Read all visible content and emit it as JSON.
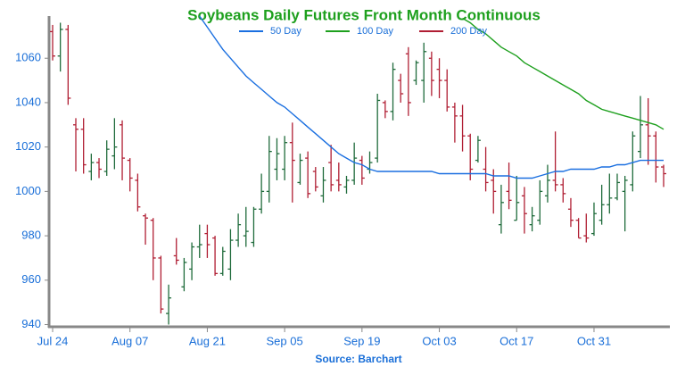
{
  "chart_data": {
    "type": "ohlc",
    "title": "Soybeans Daily Futures Front Month Continuous",
    "source": "Source: Barchart",
    "categories": [
      "Jul 24",
      null,
      null,
      null,
      null,
      null,
      null,
      null,
      null,
      null,
      "Aug 07",
      null,
      null,
      null,
      null,
      null,
      null,
      null,
      null,
      null,
      "Aug 21",
      null,
      null,
      null,
      null,
      null,
      null,
      null,
      null,
      null,
      "Sep 05",
      null,
      null,
      null,
      null,
      null,
      null,
      null,
      null,
      null,
      "Sep 19",
      null,
      null,
      null,
      null,
      null,
      null,
      null,
      null,
      null,
      "Oct 03",
      null,
      null,
      null,
      null,
      null,
      null,
      null,
      null,
      null,
      "Oct 17",
      null,
      null,
      null,
      null,
      null,
      null,
      null,
      null,
      null,
      "Oct 31",
      null,
      null,
      null,
      null,
      null,
      null,
      null,
      null,
      null
    ],
    "open": [
      1072,
      1061,
      1073,
      1030,
      1028,
      1009,
      1013,
      1009,
      1016,
      1030,
      1014,
      1005,
      989,
      987,
      970,
      945,
      971,
      957,
      965,
      975,
      981,
      979,
      963,
      965,
      978,
      980,
      977,
      992,
      1000,
      1010,
      1010,
      1022,
      1004,
      1015,
      1009,
      998,
      1013,
      1005,
      1002,
      1005,
      1014,
      1010,
      1015,
      1040,
      1036,
      1050,
      1062,
      1050,
      1050,
      1060,
      1055,
      1050,
      1038,
      1034,
      1025,
      1014,
      1010,
      1005,
      985,
      1000,
      987,
      998,
      985,
      987,
      998,
      1005,
      1003,
      992,
      987,
      980,
      981,
      987,
      994,
      997,
      1000,
      1003,
      1018,
      1030,
      1025,
      1011
    ],
    "high": [
      1075,
      1076,
      1075,
      1033,
      1033,
      1017,
      1015,
      1023,
      1033,
      1032,
      1015,
      1008,
      990,
      988,
      971,
      958,
      979,
      970,
      977,
      985,
      985,
      980,
      975,
      983,
      990,
      993,
      993,
      1008,
      1025,
      1024,
      1025,
      1031,
      1017,
      1018,
      1011,
      1011,
      1021,
      1013,
      1007,
      1022,
      1016,
      1018,
      1044,
      1041,
      1058,
      1053,
      1065,
      1059,
      1067,
      1063,
      1060,
      1055,
      1040,
      1039,
      1026,
      1025,
      1020,
      1010,
      1003,
      1013,
      1007,
      1002,
      993,
      1005,
      1012,
      1027,
      1006,
      997,
      988,
      990,
      995,
      1003,
      1008,
      1008,
      1007,
      1027,
      1043,
      1042,
      1027,
      1012
    ],
    "low": [
      1059,
      1054,
      1039,
      1009,
      1008,
      1005,
      1006,
      1007,
      1010,
      1005,
      1000,
      991,
      976,
      960,
      945,
      940,
      967,
      955,
      960,
      970,
      970,
      962,
      962,
      960,
      975,
      975,
      975,
      990,
      995,
      1005,
      1005,
      995,
      1003,
      997,
      1000,
      995,
      1000,
      1000,
      999,
      1003,
      1003,
      1008,
      1013,
      1033,
      1032,
      1040,
      1034,
      1048,
      1040,
      1043,
      1042,
      1036,
      1022,
      1018,
      1005,
      1013,
      1000,
      990,
      981,
      992,
      987,
      981,
      982,
      985,
      995,
      1000,
      995,
      984,
      979,
      977,
      980,
      985,
      990,
      996,
      982,
      1000,
      1015,
      1012,
      1004,
      1002
    ],
    "close": [
      1061,
      1073,
      1042,
      1028,
      1012,
      1013,
      1010,
      1019,
      1020,
      1015,
      1006,
      993,
      988,
      970,
      947,
      952,
      969,
      968,
      975,
      976,
      976,
      963,
      973,
      978,
      985,
      982,
      992,
      1000,
      1018,
      1017,
      1022,
      1014,
      1014,
      999,
      1002,
      1005,
      1003,
      1003,
      1005,
      1015,
      1006,
      1013,
      1041,
      1036,
      1055,
      1044,
      1040,
      1058,
      1063,
      1050,
      1050,
      1038,
      1034,
      1025,
      1010,
      1023,
      1004,
      1000,
      995,
      996,
      995,
      990,
      989,
      1000,
      1005,
      1003,
      999,
      987,
      979,
      979,
      990,
      994,
      997,
      1004,
      1005,
      1025,
      1030,
      1025,
      1011,
      1008
    ],
    "up_color": "#1f6b3b",
    "down_color": "#b01e33",
    "series": [
      {
        "name": "50 Day",
        "color": "#1a6fe0",
        "values": [
          null,
          null,
          null,
          null,
          null,
          null,
          null,
          null,
          null,
          null,
          null,
          null,
          null,
          null,
          null,
          null,
          null,
          null,
          null,
          1079,
          1074,
          1069,
          1064,
          1060,
          1056,
          1052,
          1049,
          1046,
          1043,
          1040,
          1038,
          1035,
          1032,
          1029,
          1026,
          1023,
          1020,
          1017,
          1015,
          1013,
          1012,
          1010,
          1009,
          1009,
          1009,
          1009,
          1009,
          1009,
          1009,
          1009,
          1008,
          1008,
          1008,
          1008,
          1008,
          1008,
          1008,
          1007,
          1007,
          1007,
          1006,
          1006,
          1006,
          1007,
          1008,
          1009,
          1009,
          1010,
          1010,
          1010,
          1010,
          1011,
          1011,
          1012,
          1012,
          1013,
          1014,
          1014,
          1014,
          1014
        ]
      },
      {
        "name": "100 Day",
        "color": "#1ea01e",
        "values": [
          null,
          null,
          null,
          null,
          null,
          null,
          null,
          null,
          null,
          null,
          null,
          null,
          null,
          null,
          null,
          null,
          null,
          null,
          null,
          null,
          null,
          null,
          null,
          null,
          null,
          null,
          null,
          null,
          null,
          null,
          null,
          null,
          null,
          null,
          null,
          null,
          null,
          null,
          null,
          null,
          null,
          null,
          null,
          null,
          null,
          null,
          null,
          null,
          null,
          null,
          null,
          null,
          null,
          1078,
          1076,
          1073,
          1071,
          1068,
          1065,
          1063,
          1061,
          1058,
          1056,
          1054,
          1052,
          1050,
          1048,
          1046,
          1044,
          1041,
          1039,
          1037,
          1036,
          1035,
          1034,
          1033,
          1032,
          1031,
          1030,
          1028
        ]
      },
      {
        "name": "200 Day",
        "color": "#b01e33"
      }
    ],
    "ylim": [
      939,
      1079
    ],
    "yticks": [
      940,
      960,
      980,
      1000,
      1020,
      1040,
      1060
    ]
  }
}
